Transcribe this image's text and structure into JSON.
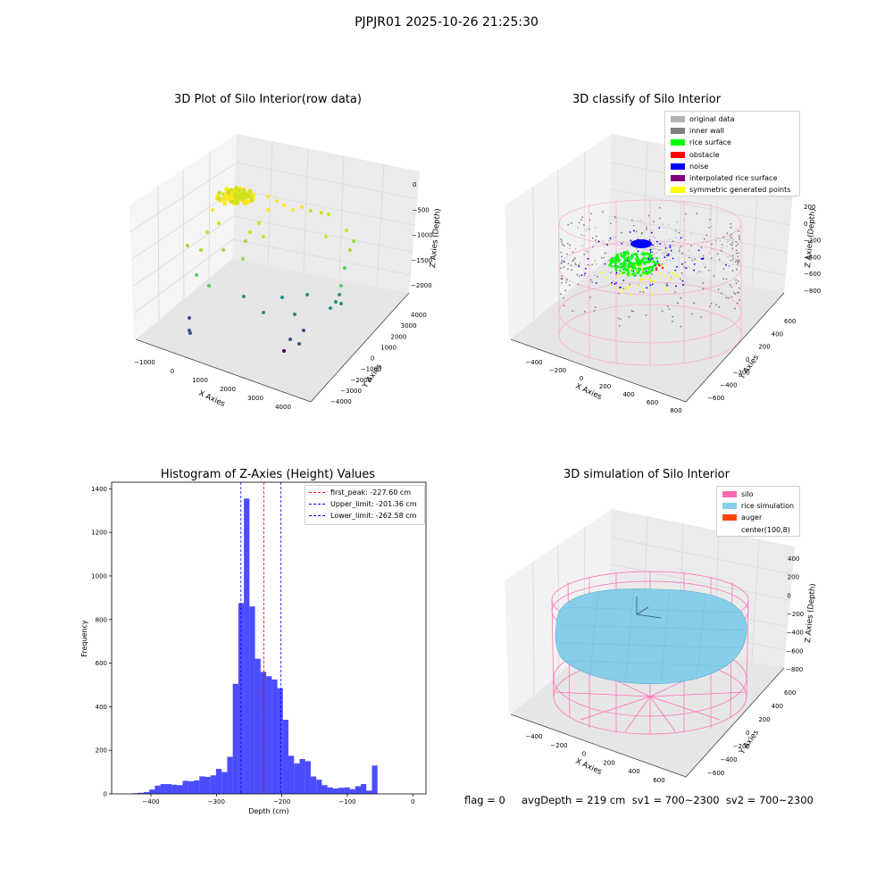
{
  "suptitle": "PJPJR01 2025-10-26 21:25:30",
  "footer_text": "flag = 0     avgDepth = 219 cm  sv1 = 700~2300  sv2 = 700~2300",
  "colors": {
    "histogram_bar": "#0000ff",
    "first_peak_line": "#ff0000",
    "limit_lines": "#0000ff",
    "pane": "#f2f2f2",
    "silo_wire": "#ff69b4",
    "rice_simulation": "#87ceeb",
    "auger": "#ff4500"
  },
  "chart_data": [
    {
      "type": "scatter3d",
      "title": "3D Plot of Silo Interior(row data)",
      "xlabel": "X Axies",
      "ylabel": "Y Axies",
      "zlabel": "Z Axies (Depth)",
      "xticks": [
        "−1000",
        "0",
        "1000",
        "2000",
        "3000",
        "4000"
      ],
      "yticks": [
        "−4000",
        "−3000",
        "−2000",
        "−1000",
        "0",
        "1000",
        "2000",
        "3000",
        "4000"
      ],
      "zticks": [
        "0",
        "−500",
        "−1000",
        "−1500",
        "−2000"
      ],
      "colormap": "viridis (by depth)"
    },
    {
      "type": "scatter3d",
      "title": "3D classify of Silo Interior",
      "xlabel": "X Axies",
      "ylabel": "Y Axies",
      "zlabel": "Z Axies (Depth)",
      "xticks": [
        "−400",
        "−200",
        "0",
        "200",
        "400",
        "600",
        "800"
      ],
      "yticks": [
        "−600",
        "−400",
        "−200",
        "0",
        "200",
        "400",
        "600"
      ],
      "zticks": [
        "200",
        "0",
        "−200",
        "−400",
        "−600",
        "−800"
      ],
      "legend_position": "upper-right",
      "legend": [
        {
          "label": "original data",
          "color": "#b3b3b3"
        },
        {
          "label": "inner wall",
          "color": "#808080"
        },
        {
          "label": "rice surface",
          "color": "#00ff00"
        },
        {
          "label": "obstacle",
          "color": "#ff0000"
        },
        {
          "label": "noise",
          "color": "#0000ff"
        },
        {
          "label": "interpolated rice surface",
          "color": "#800080"
        },
        {
          "label": "symmetric generated points",
          "color": "#ffff00"
        }
      ]
    },
    {
      "type": "bar",
      "title": "Histogram of Z-Axies (Height) Values",
      "xlabel": "Depth (cm)",
      "ylabel": "Frequency",
      "xlim": [
        -460,
        20
      ],
      "ylim": [
        0,
        1430
      ],
      "xticks": [
        "−400",
        "−300",
        "−200",
        "−100",
        "0"
      ],
      "yticks": [
        "0",
        "200",
        "400",
        "600",
        "800",
        "1000",
        "1200",
        "1400"
      ],
      "bin_width": 8.5,
      "bin_starts": [
        -428,
        -419.5,
        -411,
        -402.5,
        -394,
        -385.5,
        -377,
        -368.5,
        -360,
        -351.5,
        -343,
        -334.5,
        -326,
        -317.5,
        -309,
        -300.5,
        -292,
        -283.5,
        -275,
        -266.5,
        -258,
        -249.5,
        -241,
        -232.5,
        -224,
        -215.5,
        -207,
        -198.5,
        -190,
        -181.5,
        -173,
        -164.5,
        -156,
        -147.5,
        -139,
        -130.5,
        -122,
        -113.5,
        -105,
        -96.5,
        -88,
        -79.5,
        -71,
        -62.5,
        -54,
        -45.5,
        -37,
        -28.5,
        -20,
        -11.5,
        -3
      ],
      "values": [
        3,
        5,
        8,
        20,
        38,
        45,
        45,
        42,
        40,
        60,
        58,
        62,
        80,
        78,
        85,
        115,
        100,
        170,
        505,
        875,
        1355,
        860,
        620,
        560,
        540,
        525,
        485,
        340,
        175,
        140,
        160,
        150,
        80,
        65,
        40,
        30,
        25,
        28,
        30,
        22,
        35,
        45,
        15,
        130,
        0,
        0,
        0,
        0,
        0,
        0,
        0
      ],
      "reference_lines": [
        {
          "label": "first_peak: -227.60 cm",
          "x": -227.6,
          "color": "#ff0000"
        },
        {
          "label": "Upper_limit: -201.36 cm",
          "x": -201.36,
          "color": "#0000ff"
        },
        {
          "label": "Lower_limit: -262.58 cm",
          "x": -262.58,
          "color": "#0000ff"
        }
      ],
      "legend_position": "upper-right"
    },
    {
      "type": "surface3d",
      "title": "3D simulation of Silo Interior",
      "xlabel": "X Axies",
      "ylabel": "Y Axies",
      "zlabel": "Z Axies (Depth)",
      "xticks": [
        "−400",
        "−200",
        "0",
        "200",
        "400",
        "600"
      ],
      "yticks": [
        "−600",
        "−400",
        "−200",
        "0",
        "200",
        "400",
        "600"
      ],
      "zticks": [
        "400",
        "200",
        "0",
        "−200",
        "−400",
        "−600",
        "−800"
      ],
      "legend_position": "upper-right",
      "legend": [
        {
          "label": "silo",
          "color": "#ff69b4"
        },
        {
          "label": "rice simulation",
          "color": "#87ceeb"
        },
        {
          "label": "auger",
          "color": "#ff4500"
        },
        {
          "label": "center(100,8)",
          "color": "#ffffff"
        }
      ]
    }
  ]
}
